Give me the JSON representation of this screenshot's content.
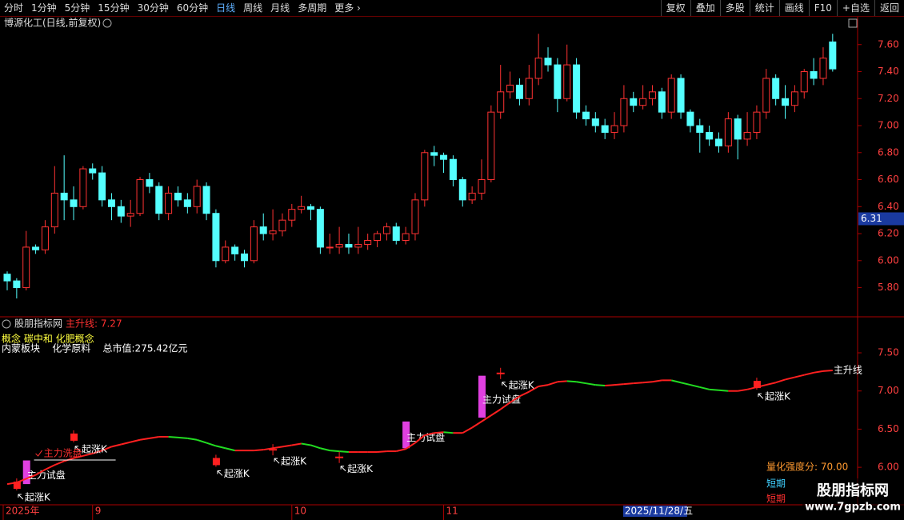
{
  "toolbar": {
    "left": [
      "分时",
      "1分钟",
      "5分钟",
      "15分钟",
      "30分钟",
      "60分钟",
      "日线",
      "周线",
      "月线",
      "多周期",
      "更多 ›"
    ],
    "right": [
      "复权",
      "叠加",
      "多股",
      "统计",
      "画线",
      "F10",
      "+自选",
      "返回"
    ],
    "active": "日线"
  },
  "chart_data": [
    {
      "type": "candlestick",
      "title": "博源化工(日线,前复权)",
      "up_color": "#ff3232",
      "down_color": "#54ffff",
      "ylim": [
        5.59,
        7.8
      ],
      "yticks": [
        {
          "value": 5.8,
          "label": "5.80"
        },
        {
          "value": 6.0,
          "label": "6.00"
        },
        {
          "value": 6.2,
          "label": "6.20"
        },
        {
          "value": 6.4,
          "label": "6.40"
        },
        {
          "value": 6.6,
          "label": "6.60"
        },
        {
          "value": 6.8,
          "label": "6.80"
        },
        {
          "value": 7.0,
          "label": "7.00"
        },
        {
          "value": 7.2,
          "label": "7.20"
        },
        {
          "value": 7.4,
          "label": "7.40"
        },
        {
          "value": 7.6,
          "label": "7.60"
        }
      ],
      "cursor_value": {
        "value": 6.31,
        "label": "6.31"
      },
      "ohlc": [
        [
          5.9,
          5.92,
          5.78,
          5.85
        ],
        [
          5.85,
          5.87,
          5.72,
          5.8
        ],
        [
          5.8,
          6.22,
          5.78,
          6.1
        ],
        [
          6.1,
          6.12,
          6.05,
          6.08
        ],
        [
          6.08,
          6.3,
          6.05,
          6.25
        ],
        [
          6.25,
          6.7,
          6.2,
          6.5
        ],
        [
          6.5,
          6.78,
          6.3,
          6.45
        ],
        [
          6.45,
          6.55,
          6.3,
          6.4
        ],
        [
          6.4,
          6.7,
          6.38,
          6.68
        ],
        [
          6.68,
          6.72,
          6.6,
          6.65
        ],
        [
          6.65,
          6.7,
          6.4,
          6.45
        ],
        [
          6.45,
          6.5,
          6.3,
          6.4
        ],
        [
          6.4,
          6.45,
          6.28,
          6.33
        ],
        [
          6.33,
          6.45,
          6.25,
          6.35
        ],
        [
          6.35,
          6.62,
          6.33,
          6.6
        ],
        [
          6.6,
          6.65,
          6.5,
          6.55
        ],
        [
          6.55,
          6.58,
          6.3,
          6.35
        ],
        [
          6.35,
          6.55,
          6.3,
          6.5
        ],
        [
          6.5,
          6.55,
          6.4,
          6.45
        ],
        [
          6.45,
          6.5,
          6.35,
          6.4
        ],
        [
          6.4,
          6.6,
          6.35,
          6.55
        ],
        [
          6.55,
          6.58,
          6.3,
          6.35
        ],
        [
          6.35,
          6.38,
          5.95,
          6.0
        ],
        [
          6.0,
          6.15,
          5.98,
          6.1
        ],
        [
          6.1,
          6.12,
          6.0,
          6.05
        ],
        [
          6.05,
          6.08,
          5.95,
          6.0
        ],
        [
          6.0,
          6.3,
          5.98,
          6.25
        ],
        [
          6.25,
          6.35,
          6.15,
          6.2
        ],
        [
          6.2,
          6.38,
          6.15,
          6.22
        ],
        [
          6.22,
          6.35,
          6.18,
          6.3
        ],
        [
          6.3,
          6.42,
          6.25,
          6.38
        ],
        [
          6.38,
          6.48,
          6.35,
          6.4
        ],
        [
          6.4,
          6.42,
          6.3,
          6.38
        ],
        [
          6.38,
          6.4,
          6.05,
          6.1
        ],
        [
          6.1,
          6.2,
          6.05,
          6.1
        ],
        [
          6.1,
          6.25,
          6.05,
          6.12
        ],
        [
          6.12,
          6.2,
          6.05,
          6.1
        ],
        [
          6.1,
          6.25,
          6.05,
          6.12
        ],
        [
          6.12,
          6.2,
          6.08,
          6.15
        ],
        [
          6.15,
          6.22,
          6.1,
          6.2
        ],
        [
          6.2,
          6.28,
          6.15,
          6.25
        ],
        [
          6.25,
          6.28,
          6.12,
          6.15
        ],
        [
          6.15,
          6.25,
          6.12,
          6.2
        ],
        [
          6.2,
          6.5,
          6.15,
          6.45
        ],
        [
          6.45,
          6.82,
          6.4,
          6.8
        ],
        [
          6.8,
          6.85,
          6.7,
          6.78
        ],
        [
          6.78,
          6.8,
          6.65,
          6.75
        ],
        [
          6.75,
          6.78,
          6.55,
          6.6
        ],
        [
          6.6,
          6.62,
          6.4,
          6.45
        ],
        [
          6.45,
          6.55,
          6.42,
          6.5
        ],
        [
          6.5,
          6.75,
          6.45,
          6.6
        ],
        [
          6.6,
          7.15,
          6.58,
          7.1
        ],
        [
          7.1,
          7.45,
          7.05,
          7.25
        ],
        [
          7.25,
          7.4,
          7.2,
          7.3
        ],
        [
          7.3,
          7.35,
          7.15,
          7.2
        ],
        [
          7.2,
          7.45,
          7.15,
          7.35
        ],
        [
          7.35,
          7.68,
          7.3,
          7.5
        ],
        [
          7.5,
          7.58,
          7.4,
          7.45
        ],
        [
          7.45,
          7.5,
          7.1,
          7.2
        ],
        [
          7.2,
          7.6,
          7.18,
          7.45
        ],
        [
          7.45,
          7.5,
          7.05,
          7.1
        ],
        [
          7.1,
          7.15,
          7.0,
          7.05
        ],
        [
          7.05,
          7.1,
          6.95,
          7.0
        ],
        [
          7.0,
          7.05,
          6.9,
          6.95
        ],
        [
          6.95,
          7.1,
          6.9,
          7.0
        ],
        [
          7.0,
          7.3,
          6.95,
          7.2
        ],
        [
          7.2,
          7.25,
          7.1,
          7.15
        ],
        [
          7.15,
          7.3,
          7.12,
          7.2
        ],
        [
          7.2,
          7.3,
          7.15,
          7.25
        ],
        [
          7.25,
          7.28,
          7.05,
          7.1
        ],
        [
          7.1,
          7.38,
          7.05,
          7.35
        ],
        [
          7.35,
          7.38,
          7.05,
          7.1
        ],
        [
          7.1,
          7.12,
          6.95,
          7.0
        ],
        [
          7.0,
          7.05,
          6.8,
          6.95
        ],
        [
          6.95,
          7.0,
          6.85,
          6.9
        ],
        [
          6.9,
          6.95,
          6.8,
          6.85
        ],
        [
          6.85,
          7.1,
          6.8,
          7.05
        ],
        [
          7.05,
          7.08,
          6.75,
          6.9
        ],
        [
          6.9,
          7.1,
          6.85,
          6.95
        ],
        [
          6.95,
          7.15,
          6.9,
          7.1
        ],
        [
          7.1,
          7.42,
          7.05,
          7.35
        ],
        [
          7.35,
          7.38,
          7.15,
          7.2
        ],
        [
          7.2,
          7.3,
          7.05,
          7.15
        ],
        [
          7.15,
          7.3,
          7.1,
          7.25
        ],
        [
          7.25,
          7.42,
          7.2,
          7.4
        ],
        [
          7.4,
          7.5,
          7.3,
          7.35
        ],
        [
          7.35,
          7.58,
          7.3,
          7.5
        ],
        [
          7.62,
          7.68,
          7.4,
          7.42
        ]
      ]
    },
    {
      "type": "line",
      "title": "股朋指标网",
      "value_label": "主升线: 7.27",
      "info": [
        "概念 碳中和 化肥概念",
        "内蒙板块    化学原料    总市值:275.42亿元"
      ],
      "ylim": [
        5.54,
        7.93
      ],
      "yticks": [
        {
          "value": 6.0,
          "label": "6.00"
        },
        {
          "value": 6.5,
          "label": "6.50"
        },
        {
          "value": 7.0,
          "label": "7.00"
        },
        {
          "value": 7.5,
          "label": "7.50"
        }
      ],
      "series": [
        {
          "name": "主升线",
          "up_color": "#ff2020",
          "down_color": "#22dd22",
          "values": [
            5.78,
            5.8,
            5.85,
            5.9,
            5.97,
            6.03,
            6.08,
            6.12,
            6.15,
            6.18,
            6.22,
            6.27,
            6.3,
            6.33,
            6.36,
            6.38,
            6.4,
            6.4,
            6.39,
            6.38,
            6.36,
            6.32,
            6.28,
            6.25,
            6.22,
            6.22,
            6.22,
            6.23,
            6.25,
            6.27,
            6.29,
            6.31,
            6.29,
            6.25,
            6.22,
            6.21,
            6.2,
            6.2,
            6.2,
            6.2,
            6.21,
            6.21,
            6.24,
            6.32,
            6.42,
            6.45,
            6.46,
            6.45,
            6.45,
            6.52,
            6.6,
            6.68,
            6.76,
            6.85,
            6.93,
            6.99,
            7.06,
            7.08,
            7.12,
            7.13,
            7.12,
            7.1,
            7.08,
            7.07,
            7.08,
            7.09,
            7.1,
            7.11,
            7.12,
            7.14,
            7.14,
            7.11,
            7.08,
            7.05,
            7.02,
            7.01,
            7.0,
            7.0,
            7.02,
            7.05,
            7.08,
            7.11,
            7.15,
            7.18,
            7.21,
            7.24,
            7.26,
            7.27
          ]
        }
      ],
      "markers": [
        {
          "index": 1,
          "value": 5.76,
          "shape": "box",
          "label": "起涨K"
        },
        {
          "index": 7,
          "value": 6.39,
          "shape": "box",
          "label": "起涨K"
        },
        {
          "index": 22,
          "value": 6.07,
          "shape": "box",
          "label": "起涨K"
        },
        {
          "index": 28,
          "value": 6.23,
          "shape": "cross",
          "label": "起涨K"
        },
        {
          "index": 35,
          "value": 6.13,
          "shape": "cross",
          "label": "起涨K"
        },
        {
          "index": 52,
          "value": 7.23,
          "shape": "cross",
          "label": "起涨K"
        },
        {
          "index": 79,
          "value": 7.08,
          "shape": "box",
          "label": "起涨K"
        }
      ],
      "probes": [
        {
          "index": 2,
          "low": 5.78,
          "high": 6.09,
          "label": "主力试盘"
        },
        {
          "index": 42,
          "low": 6.25,
          "high": 6.6,
          "label": "主力试盘"
        },
        {
          "index": 50,
          "low": 6.65,
          "high": 7.2,
          "label": "主力试盘"
        }
      ],
      "wash": {
        "index": 3,
        "value": 6.18,
        "label": "主力洗盘"
      },
      "strength": "量化强度分: 70.00",
      "legend": [
        "短期",
        "短期"
      ],
      "x_labels": [
        {
          "index": 0,
          "label": "2025年"
        },
        {
          "index": 9,
          "label": "9"
        },
        {
          "index": 30,
          "label": "10"
        },
        {
          "index": 46,
          "label": "11"
        }
      ],
      "cursor_date": {
        "index": 65,
        "label": "2025/11/28/五"
      }
    }
  ],
  "watermark": {
    "name": "股朋指标网",
    "url": "www.7gpzb.com"
  }
}
